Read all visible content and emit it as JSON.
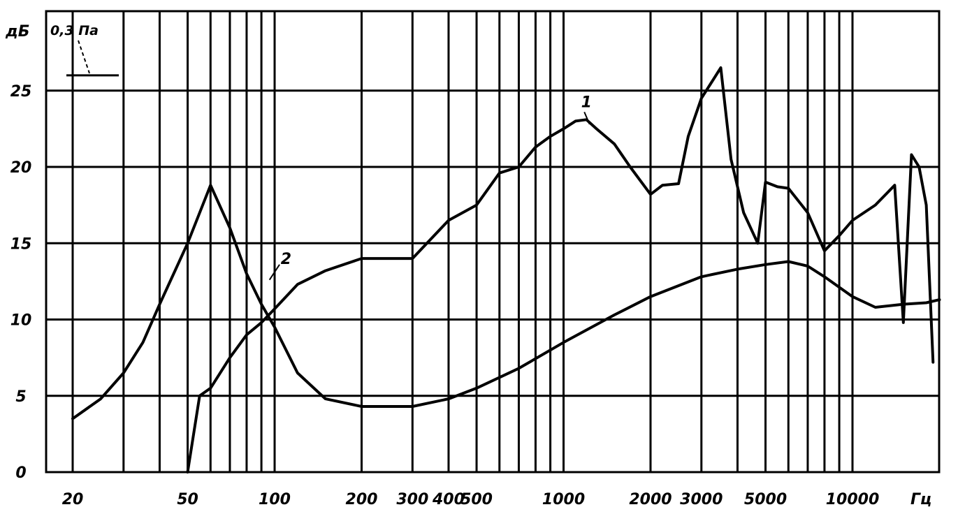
{
  "chart_data": {
    "type": "line",
    "title": "",
    "ylabel": "дБ",
    "xlabel": "Гц",
    "x_scale": "log",
    "xlim": [
      15,
      25000
    ],
    "ylim": [
      0,
      30
    ],
    "grid": true,
    "y_ticks": [
      0,
      5,
      10,
      15,
      20,
      25
    ],
    "x_tick_labels": [
      {
        "value": 20,
        "label": "20"
      },
      {
        "value": 50,
        "label": "50"
      },
      {
        "value": 100,
        "label": "100"
      },
      {
        "value": 200,
        "label": "200"
      },
      {
        "value": 300,
        "label": "300"
      },
      {
        "value": 400,
        "label": "400"
      },
      {
        "value": 500,
        "label": "500"
      },
      {
        "value": 1000,
        "label": "1000"
      },
      {
        "value": 2000,
        "label": "2000"
      },
      {
        "value": 3000,
        "label": "3000"
      },
      {
        "value": 5000,
        "label": "5000"
      },
      {
        "value": 10000,
        "label": "10000"
      }
    ],
    "x_grid": [
      20,
      30,
      40,
      50,
      60,
      70,
      80,
      90,
      100,
      200,
      300,
      400,
      500,
      600,
      700,
      800,
      900,
      1000,
      2000,
      3000,
      4000,
      5000,
      6000,
      7000,
      8000,
      9000,
      10000,
      20000
    ],
    "reference_label": "0,3 Па",
    "reference_value": 26,
    "series": [
      {
        "name": "1",
        "x": [
          50,
          55,
          60,
          70,
          80,
          90,
          100,
          120,
          150,
          200,
          300,
          400,
          500,
          600,
          700,
          800,
          900,
          1000,
          1100,
          1200,
          1300,
          1500,
          1700,
          2000,
          2200,
          2500,
          2700,
          3000,
          3500,
          3800,
          4200,
          4700,
          5000,
          5500,
          6000,
          7000,
          8000,
          9000,
          10000,
          12000,
          14000,
          15000,
          16000,
          17000,
          18000,
          19000
        ],
        "y": [
          0,
          5,
          5.5,
          7.5,
          9,
          9.8,
          10.7,
          12.3,
          13.2,
          14,
          14,
          16.5,
          17.5,
          19.6,
          20,
          21.3,
          22,
          22.5,
          23,
          23.1,
          22.5,
          21.5,
          20,
          18.2,
          18.8,
          18.9,
          22,
          24.5,
          26.5,
          20.5,
          17,
          15,
          19,
          18.7,
          18.6,
          17,
          14.5,
          15.5,
          16.5,
          17.5,
          18.8,
          9.8,
          20.8,
          20,
          17.5,
          7.2
        ]
      },
      {
        "name": "2",
        "x": [
          20,
          25,
          30,
          35,
          40,
          50,
          60,
          70,
          80,
          90,
          100,
          120,
          150,
          200,
          300,
          400,
          500,
          700,
          1000,
          1500,
          2000,
          3000,
          4000,
          5000,
          6000,
          7000,
          8000,
          10000,
          12000,
          15000,
          18000,
          20000
        ],
        "y": [
          3.5,
          4.8,
          6.5,
          8.5,
          11,
          15,
          18.8,
          16,
          13,
          11,
          9.5,
          6.5,
          4.8,
          4.3,
          4.3,
          4.8,
          5.5,
          6.8,
          8.5,
          10.3,
          11.5,
          12.8,
          13.3,
          13.6,
          13.8,
          13.5,
          12.8,
          11.5,
          10.8,
          11,
          11.1,
          11.3
        ]
      }
    ]
  }
}
